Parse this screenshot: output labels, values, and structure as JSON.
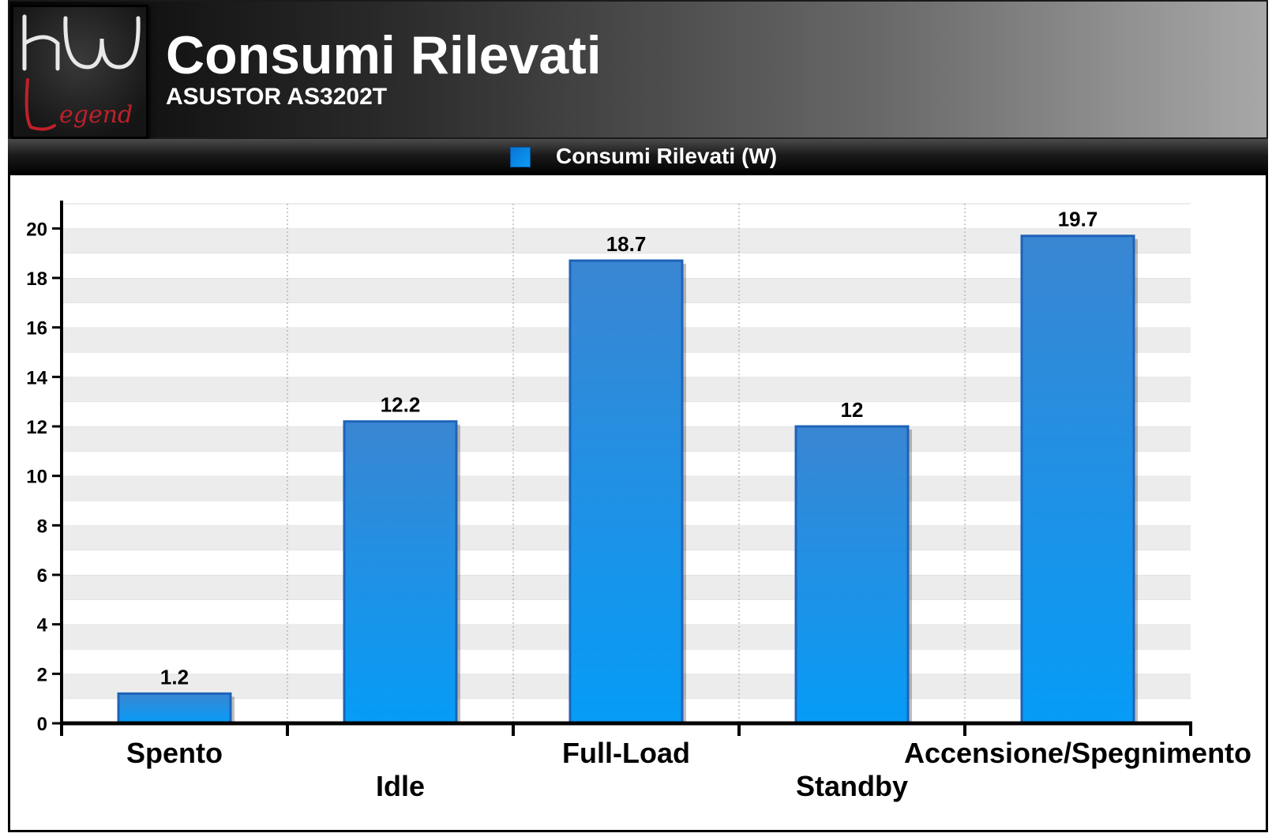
{
  "header": {
    "title": "Consumi Rilevati",
    "subtitle": "ASUSTOR AS3202T",
    "logo_text": "HW Legend"
  },
  "colors": {
    "bar_top": "#3a86d2",
    "bar_bottom": "#069cf7",
    "bar_border": "#1e63b8",
    "grid_band": "#ececec"
  },
  "chart_data": {
    "type": "bar",
    "title": "Consumi Rilevati",
    "subtitle": "ASUSTOR AS3202T",
    "categories": [
      "Spento",
      "Idle",
      "Full-Load",
      "Standby",
      "Accensione/Spegnimento"
    ],
    "series": [
      {
        "name": "Consumi Rilevati (W)",
        "values": [
          1.2,
          12.2,
          18.7,
          12,
          19.7
        ]
      }
    ],
    "data_labels": [
      "1.2",
      "12.2",
      "18.7",
      "12",
      "19.7"
    ],
    "ylim": [
      0,
      21
    ],
    "yticks": [
      0,
      2,
      4,
      6,
      8,
      10,
      12,
      14,
      16,
      18,
      20
    ],
    "legend_position": "top-center",
    "grid": true
  }
}
